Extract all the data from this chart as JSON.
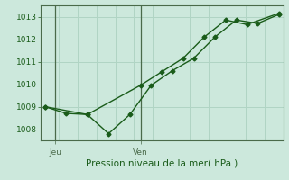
{
  "title": "Pression niveau de la mer( hPa )",
  "background_color": "#cce8dc",
  "grid_color": "#b0d4c4",
  "line_color": "#1a5c1a",
  "sep_color": "#4a6a4a",
  "ylim": [
    1007.5,
    1013.5
  ],
  "yticks": [
    1008,
    1009,
    1010,
    1011,
    1012,
    1013
  ],
  "day_labels": [
    "Jeu",
    "Ven"
  ],
  "jeu_x": 0.5,
  "ven_x": 4.5,
  "series1_x": [
    0,
    1,
    2,
    3,
    4,
    5,
    6,
    7,
    8,
    9,
    10,
    11
  ],
  "series1_y": [
    1009.0,
    1008.7,
    1008.65,
    1007.8,
    1008.65,
    1009.95,
    1010.6,
    1011.15,
    1012.1,
    1012.85,
    1012.7,
    1013.1
  ],
  "series2_x": [
    0,
    2,
    4.5,
    5.5,
    6.5,
    7.5,
    8.5,
    9.5,
    11
  ],
  "series2_y": [
    1009.0,
    1008.65,
    1009.95,
    1010.55,
    1011.15,
    1012.1,
    1012.85,
    1012.65,
    1013.15
  ],
  "n_grid_v": 14,
  "xlim": [
    -0.2,
    11.2
  ],
  "title_fontsize": 7.5,
  "tick_fontsize": 6.5
}
